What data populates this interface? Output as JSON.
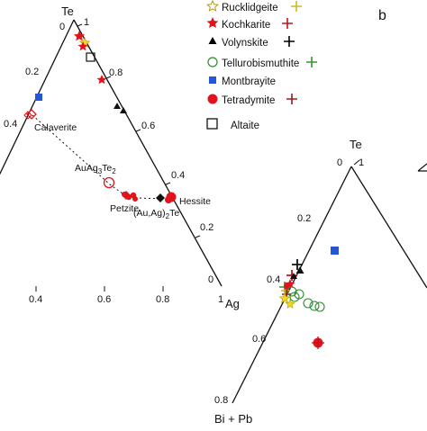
{
  "panel_label": "b",
  "left_diagram": {
    "apex_top": "Te",
    "apex_right": "Ag",
    "right_edge_ticks": [
      "1",
      "0.8",
      "0.6",
      "0.4",
      "0.2",
      "0"
    ],
    "left_edge_ticks": [
      "0",
      "0.2",
      "0.4"
    ],
    "bottom_ticks": [
      "0.4",
      "0.6",
      "0.8",
      "1"
    ],
    "mineral_labels": {
      "calaverite": "Calaverite",
      "hessite": "Hessite",
      "petzite": "Petzite",
      "auag3te2_main": "AuAg",
      "auag3te2_sub1": "3",
      "auag3te2_mid": "Te",
      "auag3te2_sub2": "2",
      "auagte_main": "(Au,Ag)",
      "auagte_sub": "2",
      "auagte_end": "Te"
    }
  },
  "right_diagram": {
    "apex_top": "Te",
    "apex_bottom_left": "Bi + Pb",
    "top_ticks": [
      "0",
      "1"
    ],
    "left_edge_ticks": [
      "0.2",
      "0.4",
      "0.6",
      "0.8"
    ]
  },
  "legend": {
    "items": [
      {
        "label": "Rucklidgeite",
        "marker": "star-outline",
        "color": "#e8d21c",
        "cross": "#d4b81a"
      },
      {
        "label": "Kochkarite",
        "marker": "star",
        "color": "#e3121b",
        "cross": "#c0141a"
      },
      {
        "label": "Volynskite",
        "marker": "triangle",
        "color": "#000000",
        "cross": "#000000"
      },
      {
        "label": "Tellurobismuthite",
        "marker": "circle-outline",
        "color": "#2e8b2e",
        "cross": "#2e9a2e"
      },
      {
        "label": "Montbrayite",
        "marker": "square",
        "color": "#2457d6",
        "cross": ""
      },
      {
        "label": "Tetradymite",
        "marker": "circle",
        "color": "#e3121b",
        "cross": "#9a1a1a"
      },
      {
        "label": "Altaite",
        "marker": "square-outline",
        "color": "#000000",
        "cross": ""
      }
    ]
  }
}
